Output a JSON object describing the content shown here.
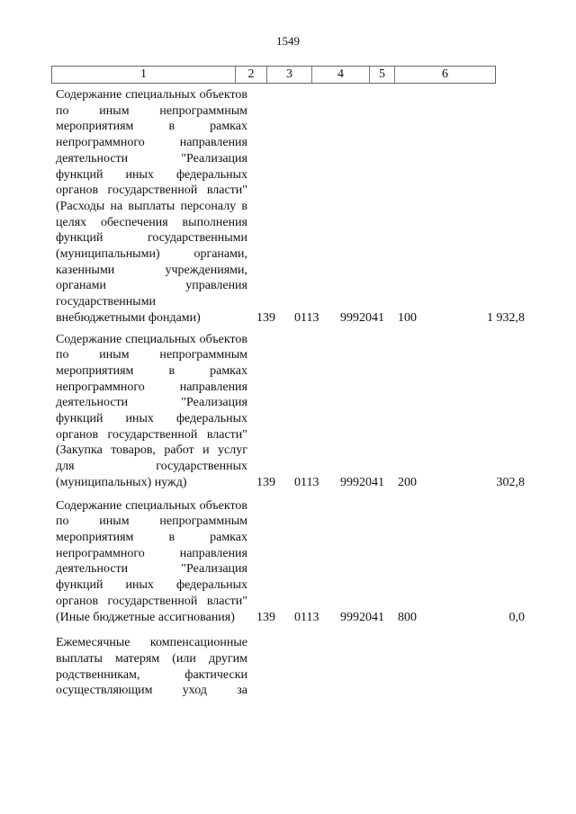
{
  "page_number": "1549",
  "header": [
    "1",
    "2",
    "3",
    "4",
    "5",
    "6"
  ],
  "rows": [
    {
      "text": "Содержание специальных объектов по иным непрограммным мероприятиям в рамках непрограммного направления деятельности \"Реализация функций иных федеральных органов государственной власти\" (Расходы на выплаты персоналу в целях обеспечения выполнения функций государственными (муниципальными) органами, казенными учреждениями, органами управления государственными внебюджетными фондами)",
      "c2": "139",
      "c3": "0113",
      "c4": "9992041",
      "c5": "100",
      "c6": "1 932,8"
    },
    {
      "text": "Содержание специальных объектов по иным непрограммным мероприятиям в рамках непрограммного направления деятельности \"Реализация функций иных федеральных органов государственной власти\" (Закупка товаров, работ и услуг для государственных (муниципальных) нужд)",
      "c2": "139",
      "c3": "0113",
      "c4": "9992041",
      "c5": "200",
      "c6": "302,8"
    },
    {
      "text": "Содержание специальных объектов по иным непрограммным мероприятиям в рамках непрограммного направления деятельности \"Реализация функций иных федеральных органов государственной власти\" (Иные бюджетные ассигнования)",
      "c2": "139",
      "c3": "0113",
      "c4": "9992041",
      "c5": "800",
      "c6": "0,0"
    },
    {
      "text": "Ежемесячные компенсационные выплаты матерям (или другим родственникам, фактически осуществляющим уход за",
      "c2": "",
      "c3": "",
      "c4": "",
      "c5": "",
      "c6": ""
    }
  ]
}
